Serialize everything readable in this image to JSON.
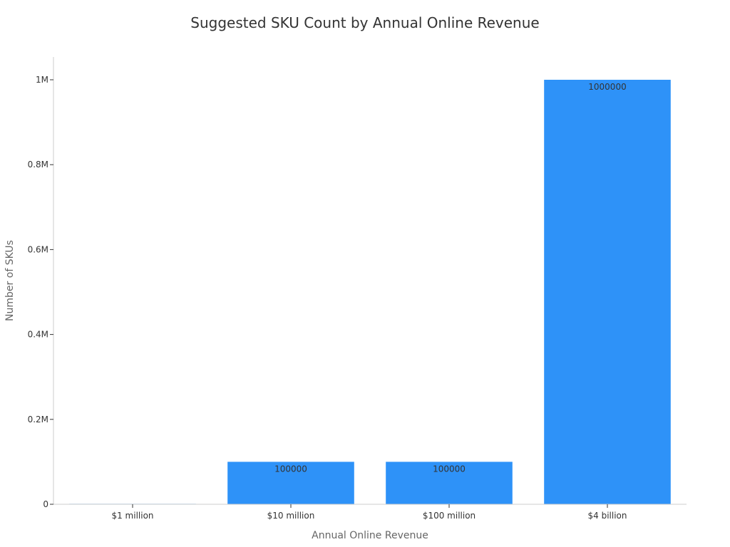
{
  "chart_data": {
    "type": "bar",
    "title": "Suggested SKU Count by Annual Online Revenue",
    "xlabel": "Annual Online Revenue",
    "ylabel": "Number of SKUs",
    "categories": [
      "$1 million",
      "$10 million",
      "$100 million",
      "$4 billion"
    ],
    "values": [
      1000,
      100000,
      100000,
      1000000
    ],
    "data_labels": [
      "",
      "100000",
      "100000",
      "1000000"
    ],
    "ylim": [
      0,
      1050000
    ],
    "yticks": [
      0,
      200000,
      400000,
      600000,
      800000,
      1000000
    ],
    "ytick_labels": [
      "0",
      "0.2M",
      "0.4M",
      "0.6M",
      "0.8M",
      "1M"
    ],
    "bar_color": "#2e92f8",
    "grid": false,
    "legend": "none"
  }
}
